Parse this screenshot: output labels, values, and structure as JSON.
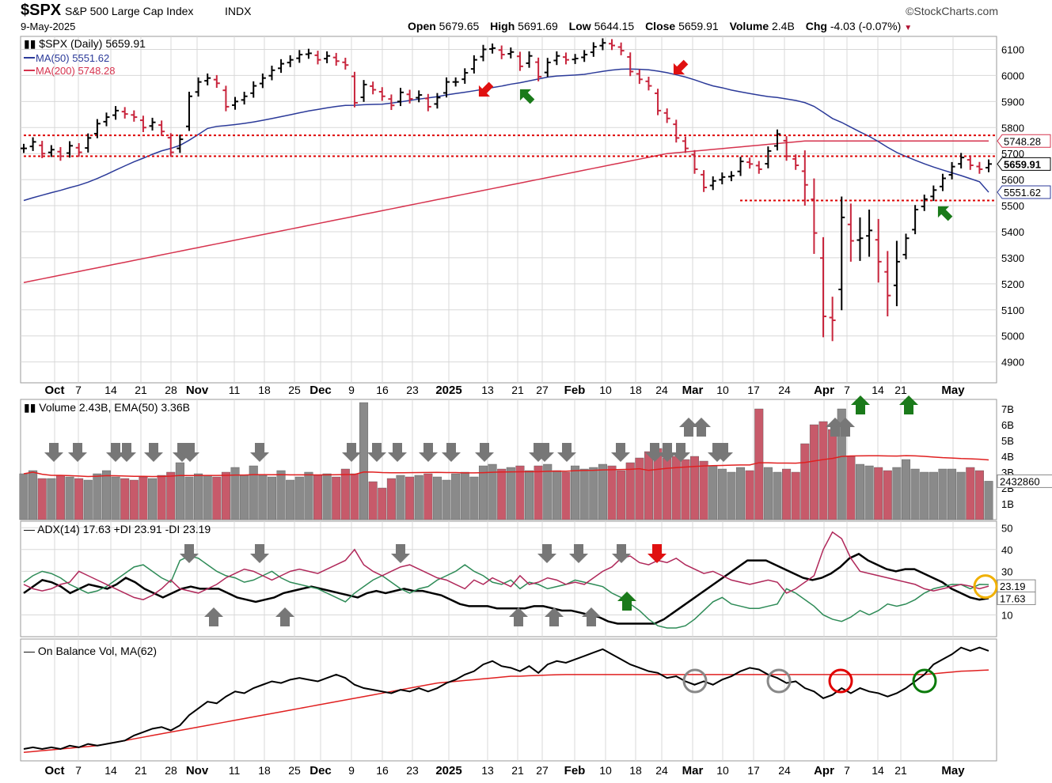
{
  "header": {
    "symbol": "$SPX",
    "name": "S&P 500 Large Cap Index",
    "exchange": "INDX",
    "source": "©StockCharts.com",
    "date": "9-May-2025",
    "open_label": "Open",
    "open": "5679.65",
    "high_label": "High",
    "high": "5691.69",
    "low_label": "Low",
    "low": "5644.15",
    "close_label": "Close",
    "close": "5659.91",
    "volume_label": "Volume",
    "volume": "2.4B",
    "chg_label": "Chg",
    "chg": "-4.03 (-0.07%)"
  },
  "colors": {
    "up": "#000000",
    "down": "#c8253c",
    "ma50": "#2b3a99",
    "ma200": "#d6334e",
    "adx_plus": "#2e8b57",
    "adx_minus": "#b0285a",
    "grid": "#d8d8d8",
    "arrow_gray": "#777777",
    "arrow_green": "#1a7a1a",
    "arrow_red": "#e01010"
  },
  "chart_data": [
    {
      "type": "ohlc",
      "title": "$SPX (Daily) 5659.91",
      "legend": [
        "MA(50) 5551.62",
        "MA(200) 5748.28"
      ],
      "y_ticks": [
        4900,
        5000,
        5100,
        5200,
        5300,
        5400,
        5500,
        5600,
        5700,
        5800,
        5900,
        6000,
        6100
      ],
      "ylim": [
        4820,
        6150
      ],
      "price_markers": [
        "5748.28",
        "5659.91",
        "5551.62"
      ],
      "support_lines": [
        5770,
        5690,
        5520
      ],
      "x_labels": [
        "Oct",
        "7",
        "14",
        "21",
        "28",
        "Nov",
        "11",
        "18",
        "25",
        "Dec",
        "9",
        "16",
        "23",
        "2025",
        "13",
        "21",
        "27",
        "Feb",
        "10",
        "18",
        "24",
        "Mar",
        "10",
        "17",
        "24",
        "Apr",
        "7",
        "14",
        "21",
        "May"
      ],
      "series_closes": [
        5720,
        5745,
        5700,
        5715,
        5690,
        5730,
        5705,
        5760,
        5815,
        5840,
        5865,
        5852,
        5840,
        5800,
        5820,
        5785,
        5705,
        5755,
        5920,
        5975,
        5990,
        5970,
        5880,
        5900,
        5920,
        5960,
        5990,
        6020,
        6045,
        6060,
        6080,
        6085,
        6060,
        6075,
        6055,
        6040,
        5895,
        5965,
        5945,
        5920,
        5885,
        5935,
        5910,
        5925,
        5880,
        5915,
        5975,
        5975,
        6010,
        6060,
        6100,
        6105,
        6080,
        6090,
        6035,
        6075,
        5995,
        6050,
        6075,
        6060,
        6065,
        6080,
        6110,
        6125,
        6115,
        6095,
        6015,
        5985,
        5960,
        5865,
        5835,
        5760,
        5720,
        5640,
        5570,
        5595,
        5610,
        5615,
        5670,
        5660,
        5640,
        5710,
        5775,
        5690,
        5655,
        5580,
        5395,
        5075,
        5060,
        5455,
        5365,
        5375,
        5405,
        5285,
        5155,
        5285,
        5375,
        5485,
        5525,
        5560,
        5605,
        5650,
        5685,
        5655,
        5640,
        5660
      ]
    },
    {
      "type": "bar",
      "title": "Volume 2.43B, EMA(50) 3.36B",
      "y_ticks": [
        "1B",
        "2B",
        "3B",
        "4B",
        "5B",
        "6B",
        "7B"
      ],
      "ylim": [
        0,
        7.6
      ],
      "last_value": "2432860",
      "values": [
        2.9,
        3.1,
        2.6,
        2.6,
        2.8,
        2.7,
        2.6,
        2.5,
        2.9,
        3.1,
        2.7,
        2.6,
        2.5,
        2.7,
        2.6,
        2.8,
        3.0,
        3.6,
        2.7,
        2.9,
        2.8,
        2.7,
        3.0,
        3.3,
        2.8,
        3.4,
        2.8,
        2.7,
        3.1,
        2.5,
        2.7,
        3.0,
        2.8,
        2.9,
        2.7,
        3.2,
        2.9,
        7.4,
        2.4,
        2.0,
        2.6,
        2.8,
        2.7,
        2.8,
        2.9,
        2.7,
        2.5,
        2.9,
        3.0,
        2.7,
        3.4,
        3.5,
        3.2,
        3.3,
        3.4,
        3.1,
        3.4,
        3.5,
        3.1,
        3.0,
        3.4,
        3.2,
        3.3,
        3.5,
        3.4,
        3.1,
        3.6,
        3.9,
        4.3,
        4.5,
        3.9,
        4.0,
        3.8,
        4.0,
        3.7,
        3.4,
        3.2,
        3.0,
        3.3,
        3.1,
        7.0,
        3.3,
        3.0,
        3.2,
        3.0,
        4.8,
        6.0,
        6.2,
        5.7,
        7.0,
        4.0,
        3.5,
        3.4,
        3.3,
        3.1,
        3.3,
        3.8,
        3.2,
        3.0,
        3.0,
        3.2,
        3.2,
        3.0,
        3.3,
        3.1,
        2.43
      ]
    },
    {
      "type": "line",
      "title": "ADX(14) 17.63 +DI 23.91 -DI 23.19",
      "y_ticks": [
        10,
        20,
        30,
        40,
        50
      ],
      "ylim": [
        0,
        53
      ],
      "series": [
        {
          "name": "ADX(14) 17.63",
          "values": [
            20,
            23,
            26,
            25,
            23,
            20,
            22,
            24,
            23,
            22,
            24,
            27,
            25,
            22,
            20,
            18,
            20,
            22,
            23,
            22,
            22,
            22,
            20,
            18,
            17,
            16,
            17,
            18,
            20,
            21,
            22,
            23,
            22,
            21,
            20,
            19,
            18,
            20,
            21,
            20,
            21,
            22,
            21,
            21,
            20,
            19,
            17,
            15,
            14,
            14,
            14,
            13,
            13,
            13,
            13,
            14,
            14,
            13,
            12,
            12,
            11,
            10,
            9,
            7,
            6,
            6,
            6,
            6,
            6,
            8,
            11,
            14,
            17,
            20,
            23,
            26,
            29,
            32,
            35,
            35,
            35,
            33,
            31,
            29,
            27,
            26,
            27,
            29,
            32,
            36,
            38,
            35,
            33,
            31,
            30,
            31,
            31,
            29,
            27,
            25,
            22,
            20,
            18,
            17,
            17.63
          ]
        },
        {
          "name": "+DI 23.91",
          "values": [
            25,
            28,
            30,
            29,
            27,
            24,
            22,
            20,
            21,
            23,
            26,
            29,
            32,
            33,
            30,
            27,
            25,
            35,
            37,
            36,
            33,
            30,
            28,
            27,
            25,
            26,
            28,
            30,
            27,
            25,
            24,
            23,
            22,
            20,
            18,
            16,
            20,
            23,
            26,
            28,
            25,
            22,
            20,
            22,
            23,
            26,
            28,
            30,
            33,
            30,
            28,
            25,
            24,
            26,
            22,
            25,
            24,
            22,
            23,
            24,
            26,
            25,
            24,
            23,
            20,
            18,
            15,
            12,
            8,
            5,
            4,
            4,
            5,
            8,
            12,
            16,
            18,
            15,
            14,
            13,
            13,
            14,
            15,
            22,
            20,
            17,
            14,
            10,
            8,
            7,
            9,
            12,
            10,
            12,
            15,
            14,
            15,
            17,
            20,
            22,
            23,
            24,
            23.91,
            22,
            24,
            23.91
          ]
        },
        {
          "name": "-DI 23.19",
          "values": [
            24,
            22,
            21,
            22,
            24,
            25,
            30,
            28,
            26,
            24,
            22,
            20,
            18,
            17,
            19,
            22,
            26,
            22,
            21,
            20,
            22,
            24,
            27,
            29,
            31,
            30,
            28,
            26,
            28,
            30,
            31,
            30,
            29,
            31,
            33,
            35,
            40,
            33,
            30,
            28,
            30,
            32,
            33,
            31,
            29,
            27,
            26,
            24,
            22,
            26,
            24,
            27,
            25,
            23,
            28,
            24,
            25,
            27,
            26,
            24,
            25,
            24,
            27,
            30,
            32,
            36,
            37,
            34,
            33,
            35,
            34,
            36,
            33,
            31,
            29,
            30,
            28,
            26,
            25,
            24,
            25,
            26,
            25,
            20,
            22,
            25,
            28,
            40,
            48,
            45,
            36,
            30,
            29,
            28,
            27,
            26,
            25,
            24,
            22,
            21,
            22,
            23,
            24,
            23.19,
            22,
            23.19
          ]
        }
      ],
      "last_values": [
        "23.19",
        "17.63"
      ]
    },
    {
      "type": "line",
      "title": "On Balance Vol, MA(62)",
      "series": [
        {
          "name": "On Balance Vol",
          "values": [
            2,
            3,
            2,
            3,
            2,
            4,
            3,
            5,
            4,
            5,
            6,
            7,
            10,
            12,
            14,
            15,
            13,
            16,
            22,
            26,
            30,
            29,
            33,
            36,
            35,
            38,
            40,
            42,
            41,
            43,
            44,
            43,
            42,
            44,
            46,
            44,
            40,
            38,
            37,
            36,
            35,
            37,
            36,
            38,
            36,
            38,
            41,
            43,
            46,
            48,
            52,
            54,
            51,
            50,
            48,
            51,
            47,
            52,
            54,
            53,
            55,
            57,
            59,
            61,
            58,
            55,
            52,
            50,
            48,
            47,
            44,
            45,
            42,
            40,
            42,
            40,
            43,
            45,
            48,
            50,
            49,
            46,
            44,
            41,
            42,
            38,
            36,
            32,
            34,
            38,
            35,
            38,
            36,
            35,
            33,
            35,
            38,
            42,
            46,
            52,
            55,
            58,
            62,
            60,
            62,
            60
          ]
        },
        {
          "name": "MA(62)",
          "values": [
            0,
            0.5,
            1,
            1.5,
            2,
            2.5,
            3,
            3.5,
            4,
            5,
            6,
            7,
            8,
            9,
            10,
            11,
            12,
            13,
            14,
            15,
            16,
            17,
            18,
            19,
            20,
            21,
            22,
            23,
            24,
            25,
            26,
            27,
            28,
            29,
            30,
            31,
            32,
            33,
            34,
            35,
            36,
            37,
            38,
            39,
            40,
            41,
            41.5,
            42,
            42.5,
            43,
            43.5,
            44,
            44.5,
            45,
            45,
            45.3,
            45.5,
            45.7,
            45.9,
            46,
            46,
            46,
            46,
            46,
            46,
            46,
            46,
            46,
            46,
            46,
            46,
            46,
            46,
            46,
            46,
            46,
            46,
            46,
            46,
            46,
            46,
            46,
            46,
            46,
            46,
            46,
            46,
            46,
            46,
            46,
            46,
            46,
            46,
            46,
            46,
            46,
            46,
            46,
            46,
            46.5,
            47,
            47.5,
            48,
            48.2,
            48.5,
            48.7
          ]
        }
      ]
    }
  ]
}
